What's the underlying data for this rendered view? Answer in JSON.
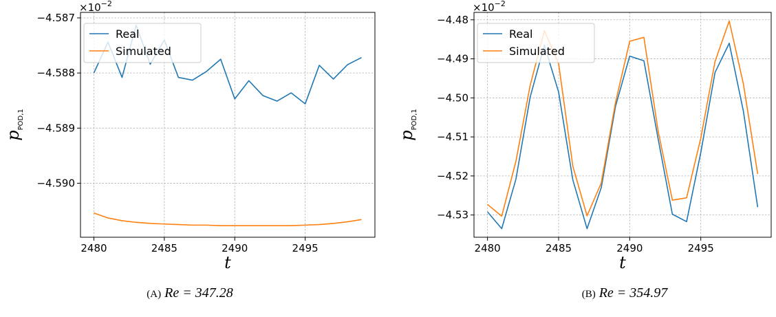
{
  "colors": {
    "real": "#1f77b4",
    "simulated": "#ff7f0e"
  },
  "captions": [
    {
      "label": "(A)",
      "math": "Re = 347.28"
    },
    {
      "label": "(B)",
      "math": "Re = 354.97"
    }
  ],
  "chart_data": [
    {
      "type": "line",
      "caption": "(A) Re = 347.28",
      "xlabel": "t",
      "ylabel": "p",
      "ylabel_sub": "POD,1",
      "offset_text": "×10",
      "offset_exp": "−2",
      "xlim": [
        2479.05,
        2499.95
      ],
      "ylim": [
        -4.59098,
        -4.5869
      ],
      "xticks": [
        2480,
        2485,
        2490,
        2495
      ],
      "yticks": [
        -4.587,
        -4.588,
        -4.589,
        -4.59
      ],
      "ytick_labels": [
        "−4.587",
        "−4.588",
        "−4.589",
        "−4.590"
      ],
      "grid": true,
      "legend": "top-left",
      "x": [
        2480,
        2481,
        2482,
        2483,
        2484,
        2485,
        2486,
        2487,
        2488,
        2489,
        2490,
        2491,
        2492,
        2493,
        2494,
        2495,
        2496,
        2497,
        2498,
        2499
      ],
      "series": [
        {
          "name": "Real",
          "color": "#1f77b4",
          "values": [
            -4.588,
            -4.58744,
            -4.58808,
            -4.58713,
            -4.58784,
            -4.5874,
            -4.58808,
            -4.58813,
            -4.58797,
            -4.58775,
            -4.58847,
            -4.58814,
            -4.58841,
            -4.58851,
            -4.58836,
            -4.58856,
            -4.58786,
            -4.58811,
            -4.58785,
            -4.58772
          ]
        },
        {
          "name": "Simulated",
          "color": "#ff7f0e",
          "values": [
            -4.59054,
            -4.59063,
            -4.59068,
            -4.59071,
            -4.59073,
            -4.59074,
            -4.59075,
            -4.59076,
            -4.59076,
            -4.59077,
            -4.59077,
            -4.59077,
            -4.59077,
            -4.59077,
            -4.59077,
            -4.59076,
            -4.59075,
            -4.59073,
            -4.5907,
            -4.59066
          ]
        }
      ]
    },
    {
      "type": "line",
      "caption": "(B) Re = 354.97",
      "xlabel": "t",
      "ylabel": "p",
      "ylabel_sub": "POD,1",
      "offset_text": "×10",
      "offset_exp": "−2",
      "xlim": [
        2479.05,
        2499.95
      ],
      "ylim": [
        -4.5357,
        -4.4781
      ],
      "xticks": [
        2480,
        2485,
        2490,
        2495
      ],
      "yticks": [
        -4.48,
        -4.49,
        -4.5,
        -4.51,
        -4.52,
        -4.53
      ],
      "ytick_labels": [
        "−4.48",
        "−4.49",
        "−4.50",
        "−4.51",
        "−4.52",
        "−4.53"
      ],
      "grid": true,
      "legend": "top-left",
      "x": [
        2480,
        2481,
        2482,
        2483,
        2484,
        2485,
        2486,
        2487,
        2488,
        2489,
        2490,
        2491,
        2492,
        2493,
        2494,
        2495,
        2496,
        2497,
        2498,
        2499
      ],
      "series": [
        {
          "name": "Real",
          "color": "#1f77b4",
          "values": [
            -4.5292,
            -4.5335,
            -4.5208,
            -4.4998,
            -4.4865,
            -4.4985,
            -4.521,
            -4.5335,
            -4.523,
            -4.5022,
            -4.4893,
            -4.4905,
            -4.5105,
            -4.5298,
            -4.5317,
            -4.514,
            -4.4935,
            -4.486,
            -4.5035,
            -4.528
          ]
        },
        {
          "name": "Simulated",
          "color": "#ff7f0e",
          "values": [
            -4.5273,
            -4.5303,
            -4.5162,
            -4.4968,
            -4.4828,
            -4.4912,
            -4.5175,
            -4.5302,
            -4.5218,
            -4.5012,
            -4.4855,
            -4.4845,
            -4.5085,
            -4.5262,
            -4.5256,
            -4.5103,
            -4.4907,
            -4.4803,
            -4.4965,
            -4.5195
          ]
        }
      ]
    }
  ]
}
